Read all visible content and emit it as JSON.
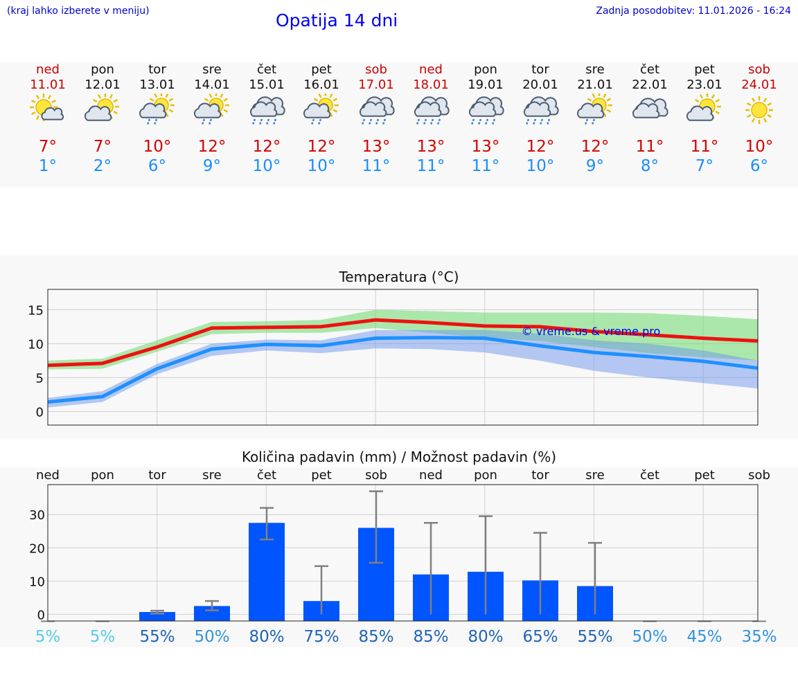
{
  "header": {
    "menu_hint": "(kraj lahko izberete v meniju)",
    "title": "Opatija 14 dni",
    "updated": "Zadnja posodobitev: 11.01.2026 - 16:24"
  },
  "colors": {
    "max_temp": "#d40000",
    "min_temp": "#1a8cff",
    "weekend": "#cc0000",
    "bar": "#0055ff"
  },
  "days": [
    {
      "name": "ned",
      "date": "11.01",
      "hi": "7°",
      "lo": "1°",
      "icon": "sun-cloud-icon",
      "weekend": true
    },
    {
      "name": "pon",
      "date": "12.01",
      "hi": "7°",
      "lo": "2°",
      "icon": "cloud-sun-icon",
      "weekend": false
    },
    {
      "name": "tor",
      "date": "13.01",
      "hi": "10°",
      "lo": "6°",
      "icon": "sun-cloud-rain-icon",
      "weekend": false
    },
    {
      "name": "sre",
      "date": "14.01",
      "hi": "12°",
      "lo": "9°",
      "icon": "sun-cloud-rain-icon",
      "weekend": false
    },
    {
      "name": "čet",
      "date": "15.01",
      "hi": "12°",
      "lo": "10°",
      "icon": "rain-cloud-icon",
      "weekend": false
    },
    {
      "name": "pet",
      "date": "16.01",
      "hi": "12°",
      "lo": "10°",
      "icon": "sun-cloud-rain-icon",
      "weekend": false
    },
    {
      "name": "sob",
      "date": "17.01",
      "hi": "13°",
      "lo": "11°",
      "icon": "rain-cloud-icon",
      "weekend": true
    },
    {
      "name": "ned",
      "date": "18.01",
      "hi": "13°",
      "lo": "11°",
      "icon": "rain-cloud-icon",
      "weekend": true
    },
    {
      "name": "pon",
      "date": "19.01",
      "hi": "13°",
      "lo": "11°",
      "icon": "rain-cloud-icon",
      "weekend": false
    },
    {
      "name": "tor",
      "date": "20.01",
      "hi": "12°",
      "lo": "10°",
      "icon": "rain-cloud-icon",
      "weekend": false
    },
    {
      "name": "sre",
      "date": "21.01",
      "hi": "12°",
      "lo": "9°",
      "icon": "sun-cloud-rain-icon",
      "weekend": false
    },
    {
      "name": "čet",
      "date": "22.01",
      "hi": "11°",
      "lo": "8°",
      "icon": "cloud-icon",
      "weekend": false
    },
    {
      "name": "pet",
      "date": "23.01",
      "hi": "11°",
      "lo": "7°",
      "icon": "cloud-sun-icon",
      "weekend": false
    },
    {
      "name": "sob",
      "date": "24.01",
      "hi": "10°",
      "lo": "6°",
      "icon": "sun-icon",
      "weekend": true
    }
  ],
  "chart_data": [
    {
      "type": "line",
      "title": "Temperatura (°C)",
      "xlabel": "",
      "ylabel": "",
      "ylim": [
        -2,
        18
      ],
      "yticks": [
        0,
        5,
        10,
        15
      ],
      "x": [
        0,
        1,
        2,
        3,
        4,
        5,
        6,
        7,
        8,
        9,
        10,
        11,
        12,
        13
      ],
      "series": [
        {
          "name": "max",
          "color": "#ee1111",
          "values": [
            6.8,
            7.1,
            9.5,
            12.3,
            12.4,
            12.5,
            13.5,
            13.1,
            12.6,
            12.5,
            11.8,
            11.3,
            10.8,
            10.4
          ]
        },
        {
          "name": "min",
          "color": "#1e90ff",
          "values": [
            1.4,
            2.2,
            6.3,
            9.2,
            9.9,
            9.7,
            10.8,
            10.9,
            10.8,
            9.7,
            8.7,
            8.1,
            7.4,
            6.4
          ]
        },
        {
          "name": "max_band_upper",
          "values": [
            7.5,
            7.8,
            10.5,
            13.2,
            13.3,
            13.5,
            15.0,
            14.8,
            14.6,
            14.6,
            14.6,
            14.5,
            14.1,
            13.6
          ]
        },
        {
          "name": "max_band_lower",
          "values": [
            6.2,
            6.3,
            8.8,
            11.4,
            11.6,
            11.6,
            12.3,
            11.6,
            10.9,
            10.4,
            9.5,
            8.6,
            8.0,
            7.5
          ]
        },
        {
          "name": "min_band_upper",
          "values": [
            2.0,
            3.0,
            7.0,
            10.0,
            10.6,
            10.5,
            12.0,
            12.0,
            12.0,
            11.5,
            10.5,
            10.0,
            9.0,
            7.5
          ]
        },
        {
          "name": "min_band_lower",
          "values": [
            0.6,
            1.4,
            5.5,
            8.2,
            9.0,
            8.6,
            9.3,
            9.2,
            8.7,
            7.5,
            6.0,
            5.0,
            4.2,
            3.4
          ]
        }
      ],
      "watermark": "© vreme.us & vreme.pro"
    },
    {
      "type": "bar",
      "title": "Količina padavin (mm) / Možnost padavin (%)",
      "categories": [
        "ned",
        "pon",
        "tor",
        "sre",
        "čet",
        "pet",
        "sob",
        "ned",
        "pon",
        "tor",
        "sre",
        "čet",
        "pet",
        "sob"
      ],
      "values": [
        0,
        0,
        0.7,
        2.5,
        27.5,
        4,
        26,
        12,
        12.8,
        10.2,
        8.5,
        0,
        0,
        0
      ],
      "error_low": [
        0,
        0,
        0.2,
        1.2,
        22.5,
        0,
        15.5,
        0,
        0,
        0,
        0,
        0,
        0,
        0
      ],
      "error_high": [
        0,
        0,
        1.1,
        4,
        32,
        14.5,
        37,
        27.5,
        29.5,
        24.5,
        21.5,
        0,
        0,
        0
      ],
      "ylim": [
        -2,
        39
      ],
      "yticks": [
        0,
        10,
        20,
        30
      ],
      "probabilities": [
        "5%",
        "5%",
        "55%",
        "50%",
        "80%",
        "75%",
        "85%",
        "85%",
        "80%",
        "65%",
        "55%",
        "50%",
        "45%",
        "35%"
      ],
      "probability_colors": [
        "#55cce6",
        "#55cce6",
        "#1e64b4",
        "#3294dc",
        "#1e64b4",
        "#1e64b4",
        "#1e64b4",
        "#1e64b4",
        "#1e64b4",
        "#1e64b4",
        "#1e64b4",
        "#3294dc",
        "#3294dc",
        "#3294dc"
      ]
    }
  ]
}
